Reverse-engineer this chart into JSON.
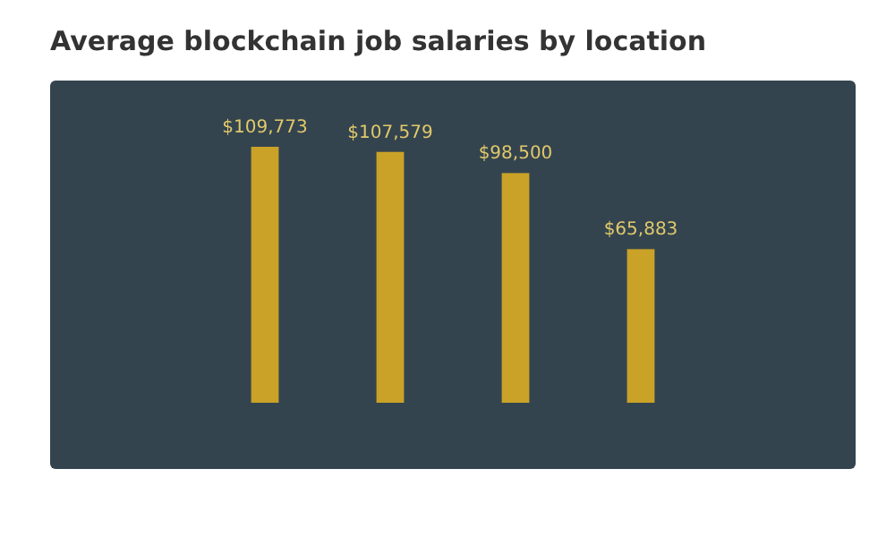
{
  "chart_data": {
    "type": "bar",
    "title": "Average blockchain job salaries by location",
    "categories": [
      null,
      null,
      null,
      null
    ],
    "values": [
      109773,
      107579,
      98500,
      65883
    ],
    "value_labels": [
      "$109,773",
      "$107,579",
      "$98,500",
      "$65,883"
    ],
    "color": "#c9a227"
  }
}
